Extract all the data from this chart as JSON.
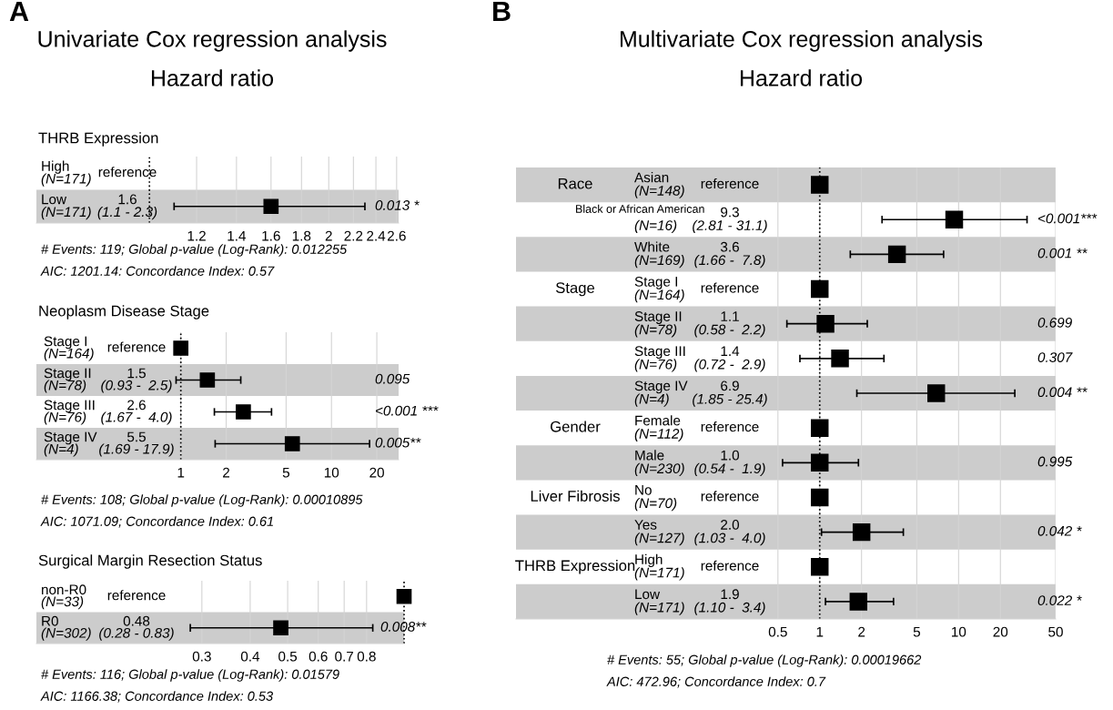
{
  "chart_data": [
    {
      "type": "scatter",
      "orientation": "horizontal",
      "title": "Univariate Cox regression analysis",
      "subtitle": "Hazard ratio",
      "ylabel": "THRB Expression",
      "categories": [
        "High\n(N=171)",
        "Low\n(N=171)"
      ],
      "values": [
        null,
        1.6
      ],
      "errors": [
        null,
        [
          1.1,
          2.3
        ]
      ],
      "y2_categories": [
        null,
        "0.013 *"
      ],
      "color": "#000000",
      "marker": "square",
      "log": "x",
      "grid": "x",
      "tick_labels": "x",
      "xlim": [
        0.646,
        2.62
      ],
      "xticks": [
        1.2,
        1.4,
        1.6,
        1.8,
        2,
        2.2,
        2.4,
        2.6
      ],
      "ref_lines": [
        {
          "axis": "x",
          "value": 1,
          "line_style": "dotted"
        }
      ],
      "annotations": [
        "A",
        "reference",
        "1.6\n(1.1 - 2.3)",
        "# Events: 119; Global p-value (Log-Rank): 0.012255",
        "AIC: 1201.14: Concordance Index: 0.57"
      ]
    },
    {
      "type": "scatter",
      "orientation": "horizontal",
      "ylabel": "Neoplasm Disease Stage",
      "categories": [
        "Stage I\n(N=164)",
        "Stage II\n(N=78)",
        "Stage III\n(N=76)",
        "Stage IV\n(N=4)"
      ],
      "values": [
        1,
        1.5,
        2.6,
        5.5
      ],
      "errors": [
        null,
        [
          0.93,
          2.5
        ],
        [
          1.67,
          4.0
        ],
        [
          1.69,
          17.9
        ]
      ],
      "y2_categories": [
        null,
        "0.095",
        "<0.001 ***",
        "0.005**"
      ],
      "color": "#000000",
      "marker": "square",
      "log": "x",
      "grid": "x",
      "tick_labels": "x",
      "xlim": [
        0.11,
        27.9
      ],
      "xticks": [
        1,
        2,
        5,
        10,
        20
      ],
      "ref_lines": [
        {
          "axis": "x",
          "value": 1,
          "line_style": "dotted"
        }
      ],
      "annotations": [
        "reference",
        "1.5\n(0.93 -  2.5)",
        "2.6\n(1.67 -  4.0)",
        "5.5\n(1.69 - 17.9)",
        "# Events: 108; Global p-value (Log-Rank): 0.00010895",
        "AIC: 1071.09; Concordance Index: 0.61"
      ]
    },
    {
      "type": "scatter",
      "orientation": "horizontal",
      "ylabel": "Surgical Margin Resection Status",
      "categories": [
        "non-R0\n(N=33)",
        "R0\n(N=302)"
      ],
      "values": [
        1,
        0.48
      ],
      "errors": [
        null,
        [
          0.28,
          0.83
        ]
      ],
      "y2_categories": [
        null,
        "0.008**"
      ],
      "color": "#000000",
      "marker": "square",
      "log": "x",
      "grid": "x",
      "tick_labels": "x",
      "xlim": [
        0.112,
        1.0
      ],
      "xticks": [
        0.3,
        0.4,
        0.5,
        0.6,
        0.7,
        0.8
      ],
      "ref_lines": [
        {
          "axis": "x",
          "value": 1,
          "line_style": "dotted"
        }
      ],
      "annotations": [
        "reference",
        "0.48\n(0.28 - 0.83)",
        "# Events: 116; Global p-value (Log-Rank): 0.01579",
        "AIC: 1166.38; Concordance Index: 0.53"
      ]
    },
    {
      "type": "scatter",
      "orientation": "horizontal",
      "title": "Multivariate Cox regression analysis",
      "subtitle": "Hazard ratio",
      "categories": [
        "Asian\n(N=148)",
        "Black or African American\n(N=16)",
        "White\n(N=169)",
        "Stage I\n(N=164)",
        "Stage II\n(N=78)",
        "Stage III\n(N=76)",
        "Stage IV\n(N=4)",
        "Female\n(N=112)",
        "Male\n(N=230)",
        "No\n(N=70)",
        "Yes\n(N=127)",
        "High\n(N=171)",
        "Low\n(N=171)"
      ],
      "values": [
        1,
        9.3,
        3.6,
        1,
        1.1,
        1.4,
        6.9,
        1,
        1.0,
        1,
        2.0,
        1,
        1.9
      ],
      "errors": [
        null,
        [
          2.81,
          31.1
        ],
        [
          1.66,
          7.8
        ],
        null,
        [
          0.58,
          2.2
        ],
        [
          0.72,
          2.9
        ],
        [
          1.85,
          25.4
        ],
        null,
        [
          0.54,
          1.9
        ],
        null,
        [
          1.03,
          4.0
        ],
        null,
        [
          1.1,
          3.4
        ]
      ],
      "y2_categories": [
        null,
        "<0.001***",
        "0.001 **",
        null,
        "0.699",
        "0.307",
        "0.004 **",
        null,
        "0.995",
        null,
        "0.042 *",
        null,
        "0.022 *"
      ],
      "color": "#000000",
      "marker": "square",
      "log": "x",
      "grid": "x",
      "tick_labels": "x",
      "xlim": [
        0.0065,
        50
      ],
      "xticks": [
        0.5,
        1,
        2,
        5,
        10,
        20,
        50
      ],
      "ref_lines": [
        {
          "axis": "x",
          "value": 1,
          "line_style": "dotted"
        }
      ],
      "annotations": [
        "B",
        "Race",
        "Stage",
        "Gender",
        "Liver Fibrosis",
        "THRB Expression",
        "reference",
        "9.3\n(2.81 - 31.1)",
        "3.6\n(1.66 -  7.8)",
        "reference",
        "1.1\n(0.58 -  2.2)",
        "1.4\n(0.72 -  2.9)",
        "6.9\n(1.85 - 25.4)",
        "reference",
        "1.0\n(0.54 -  1.9)",
        "reference",
        "2.0\n(1.03 -  4.0)",
        "reference",
        "1.9\n(1.10 -  3.4)",
        "# Events: 55; Global p-value (Log-Rank): 0.00019662",
        "AIC: 472.96; Concordance Index: 0.7"
      ]
    }
  ]
}
